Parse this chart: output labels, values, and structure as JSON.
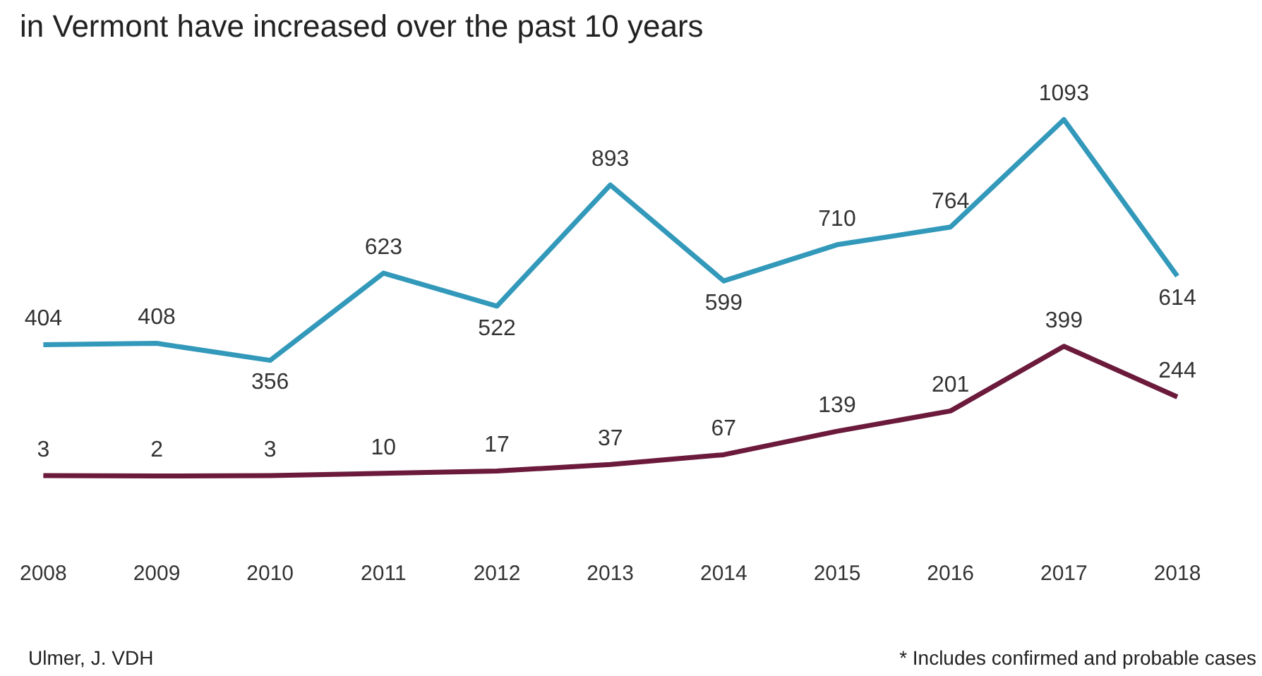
{
  "chart_data": {
    "type": "line",
    "title": "in Vermont have increased over the past 10 years",
    "categories": [
      "2008",
      "2009",
      "2010",
      "2011",
      "2012",
      "2013",
      "2014",
      "2015",
      "2016",
      "2017",
      "2018"
    ],
    "series": [
      {
        "color": "#3399bb",
        "values": [
          404,
          408,
          356,
          623,
          522,
          893,
          599,
          710,
          764,
          1093,
          614
        ]
      },
      {
        "color": "#6b1a3c",
        "axis": "y2",
        "values": [
          3,
          2,
          3,
          10,
          17,
          37,
          67,
          139,
          201,
          399,
          244
        ]
      }
    ],
    "data_labels": true,
    "grid": false,
    "legend": false,
    "tick_labels": "x",
    "marker": "none",
    "line_style": "solid",
    "annotations": [
      "Ulmer, J. VDH",
      "* Includes confirmed and probable cases"
    ]
  }
}
